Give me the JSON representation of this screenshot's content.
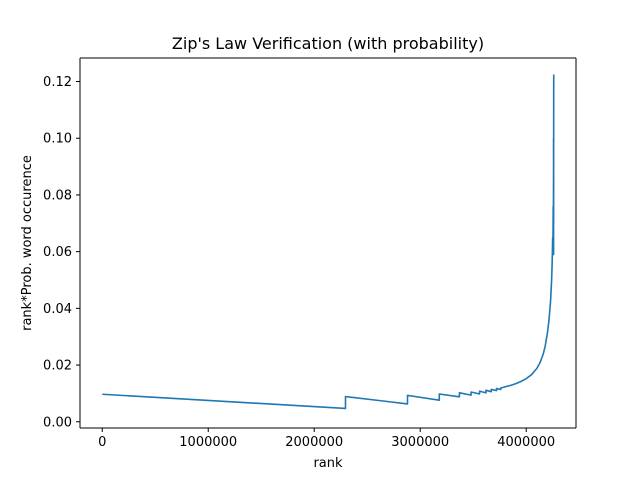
{
  "chart_data": {
    "type": "line",
    "title": "Zip's Law Verification (with probability)",
    "xlabel": "rank",
    "ylabel": "rank*Prob. word occurence",
    "xlim": [
      -210000,
      4470000
    ],
    "ylim": [
      -0.0022,
      0.1283
    ],
    "xticks": [
      0,
      1000000,
      2000000,
      3000000,
      4000000
    ],
    "xtick_labels": [
      "0",
      "1000000",
      "2000000",
      "3000000",
      "4000000"
    ],
    "yticks": [
      0.0,
      0.02,
      0.04,
      0.06,
      0.08,
      0.1,
      0.12
    ],
    "ytick_labels": [
      "0.00",
      "0.02",
      "0.04",
      "0.06",
      "0.08",
      "0.10",
      "0.12"
    ],
    "grid": false,
    "legend": "none",
    "series": [
      {
        "color": "#1f77b4",
        "x": [
          0,
          2295000,
          2295000,
          2880000,
          2880000,
          3180000,
          3180000,
          3370000,
          3370000,
          3480000,
          3480000,
          3560000,
          3560000,
          3620000,
          3620000,
          3670000,
          3670000,
          3720000,
          3720000,
          3760000,
          3760000,
          3800000,
          3850000,
          3900000,
          3950000,
          4000000,
          4050000,
          4100000,
          4130000,
          4160000,
          4180000,
          4200000,
          4215000,
          4230000,
          4240000,
          4245000,
          4250000,
          4252000,
          4255000,
          4256000,
          4258000,
          4258500,
          4258000,
          4259000,
          4259500,
          4260000
        ],
        "y": [
          0.0097,
          0.0047,
          0.0089,
          0.0063,
          0.0093,
          0.0076,
          0.0098,
          0.0088,
          0.0102,
          0.0094,
          0.0105,
          0.0098,
          0.0108,
          0.0102,
          0.0111,
          0.0106,
          0.0114,
          0.011,
          0.0117,
          0.0114,
          0.0119,
          0.0123,
          0.0128,
          0.0134,
          0.0142,
          0.0152,
          0.0166,
          0.0188,
          0.0208,
          0.0238,
          0.0268,
          0.0312,
          0.0358,
          0.0425,
          0.05,
          0.056,
          0.065,
          0.06,
          0.076,
          0.062,
          0.088,
          0.059,
          0.1,
          0.07,
          0.115,
          0.1225
        ]
      }
    ]
  }
}
